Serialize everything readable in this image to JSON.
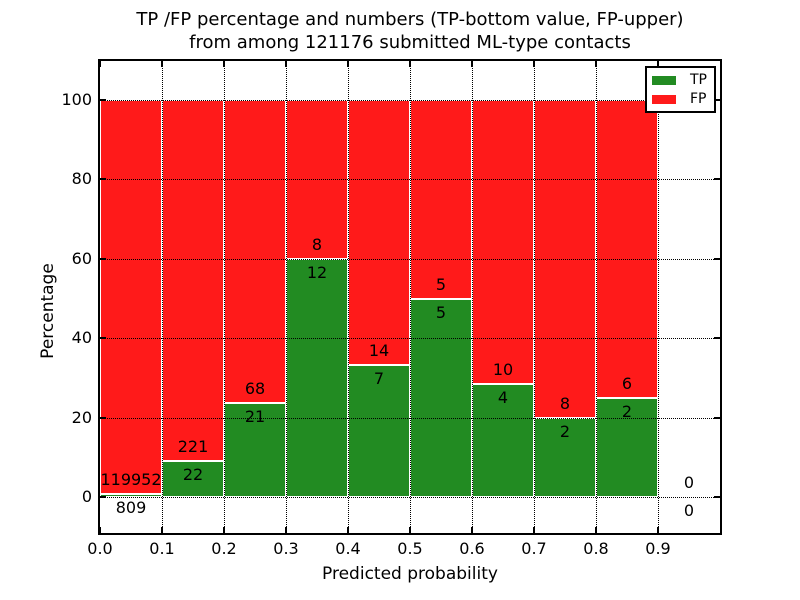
{
  "figure": {
    "title_line1": "TP /FP percentage and numbers (TP-bottom value, FP-upper)",
    "title_line2": "from among 121176 submitted ML-type contacts"
  },
  "chart_data": {
    "type": "bar",
    "stacked": true,
    "orientation": "vertical",
    "title": "TP /FP percentage and numbers (TP-bottom value, FP-upper)\nfrom among 121176 submitted ML-type contacts",
    "total_submitted": 121176,
    "xlabel": "Predicted probability",
    "ylabel": "Percentage",
    "xlim": [
      0.0,
      1.0
    ],
    "ylim": [
      -9.1,
      109.8
    ],
    "xticks": [
      "0.0",
      "0.1",
      "0.2",
      "0.3",
      "0.4",
      "0.5",
      "0.6",
      "0.7",
      "0.8",
      "0.9"
    ],
    "yticks": [
      "0",
      "20",
      "40",
      "60",
      "80",
      "100"
    ],
    "grid": "dotted",
    "bar_edge_color": "#ffffff",
    "colors": {
      "tp": "#228b22",
      "fp": "#ff1a1a"
    },
    "legend": {
      "position": "upper right",
      "entries": [
        {
          "label": "TP",
          "color": "#228b22"
        },
        {
          "label": "FP",
          "color": "#ff1a1a"
        }
      ]
    },
    "bins": [
      {
        "x_start": 0.0,
        "x_end": 0.1,
        "tp_count": 809,
        "fp_count": 119952,
        "tp_pct": 0.67,
        "fp_pct": 99.33
      },
      {
        "x_start": 0.1,
        "x_end": 0.2,
        "tp_count": 22,
        "fp_count": 221,
        "tp_pct": 9.05,
        "fp_pct": 90.95
      },
      {
        "x_start": 0.2,
        "x_end": 0.3,
        "tp_count": 21,
        "fp_count": 68,
        "tp_pct": 23.6,
        "fp_pct": 76.4
      },
      {
        "x_start": 0.3,
        "x_end": 0.4,
        "tp_count": 12,
        "fp_count": 8,
        "tp_pct": 60.0,
        "fp_pct": 40.0
      },
      {
        "x_start": 0.4,
        "x_end": 0.5,
        "tp_count": 7,
        "fp_count": 14,
        "tp_pct": 33.33,
        "fp_pct": 66.67
      },
      {
        "x_start": 0.5,
        "x_end": 0.6,
        "tp_count": 5,
        "fp_count": 5,
        "tp_pct": 50.0,
        "fp_pct": 50.0
      },
      {
        "x_start": 0.6,
        "x_end": 0.7,
        "tp_count": 4,
        "fp_count": 10,
        "tp_pct": 28.57,
        "fp_pct": 71.43
      },
      {
        "x_start": 0.7,
        "x_end": 0.8,
        "tp_count": 2,
        "fp_count": 8,
        "tp_pct": 20.0,
        "fp_pct": 80.0
      },
      {
        "x_start": 0.8,
        "x_end": 0.9,
        "tp_count": 2,
        "fp_count": 6,
        "tp_pct": 25.0,
        "fp_pct": 75.0
      },
      {
        "x_start": 0.9,
        "x_end": 1.0,
        "tp_count": 0,
        "fp_count": 0,
        "tp_pct": 0.0,
        "fp_pct": 0.0
      }
    ]
  }
}
